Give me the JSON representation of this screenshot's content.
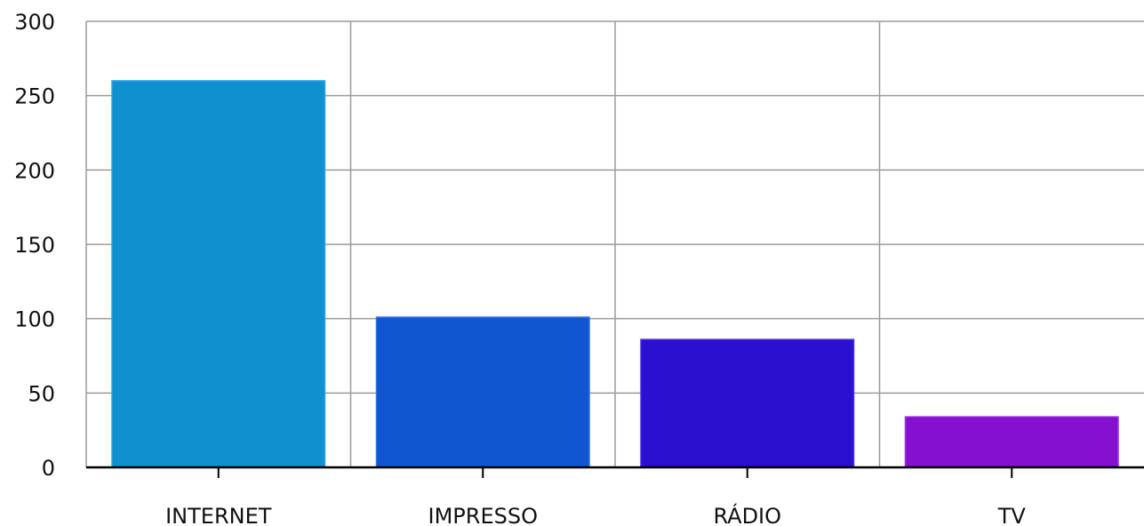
{
  "chart_data": {
    "type": "bar",
    "title": "",
    "xlabel": "",
    "ylabel": "",
    "categories": [
      "INTERNET",
      "IMPRESSO",
      "RÁDIO",
      "TV"
    ],
    "values": [
      260,
      101,
      86,
      34
    ],
    "colors": [
      "#1190D0",
      "#1056D0",
      "#2B10D0",
      "#8610D0"
    ],
    "border_colors": [
      "#2AA6E6",
      "#2A70E6",
      "#4A30E6",
      "#A030E6"
    ],
    "ylim": [
      0,
      300
    ],
    "yticks": [
      0,
      50,
      100,
      150,
      200,
      250,
      300
    ],
    "grid": true,
    "legend": "none"
  }
}
